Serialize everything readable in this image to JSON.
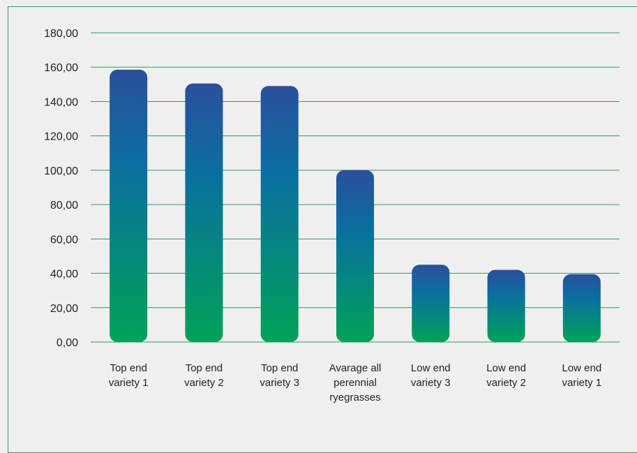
{
  "chart_data": {
    "type": "bar",
    "categories": [
      [
        "Top end",
        "variety 1"
      ],
      [
        "Top end",
        "variety 2"
      ],
      [
        "Top end",
        "variety 3"
      ],
      [
        "Avarage all",
        "perennial",
        "ryegrasses"
      ],
      [
        "Low end",
        "variety 3"
      ],
      [
        "Low end",
        "variety 2"
      ],
      [
        "Low end",
        "variety 1"
      ]
    ],
    "values": [
      158.5,
      150.5,
      149.0,
      100.0,
      45.0,
      42.0,
      39.5
    ],
    "ylim": [
      0,
      180
    ],
    "yticks": [
      "0,00",
      "20,00",
      "40,00",
      "60,00",
      "80,00",
      "100,00",
      "120,00",
      "140,00",
      "160,00",
      "180,00"
    ],
    "grid": true,
    "colors": {
      "bar_top": "#2b4f9c",
      "bar_mid": "#0a6fa0",
      "bar_bottom": "#00a257",
      "gridline": "#2e9a62",
      "frame": "#2e9a62",
      "background": "#efefef"
    }
  }
}
